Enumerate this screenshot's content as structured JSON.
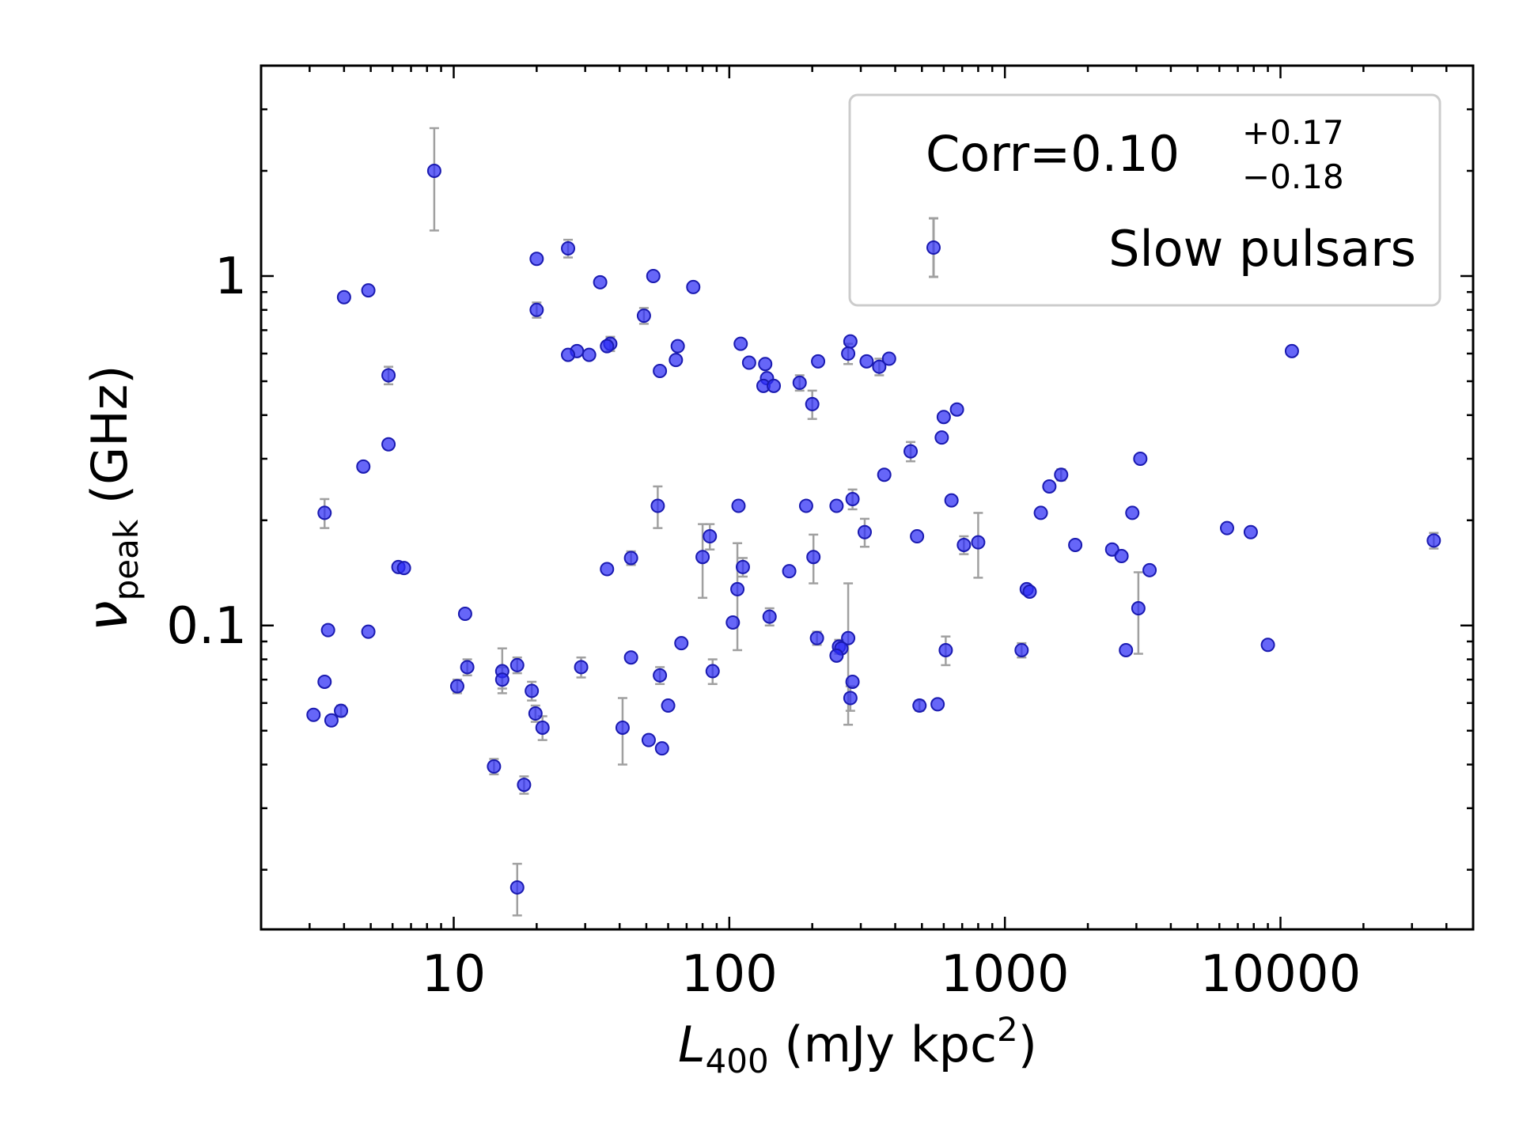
{
  "chart_data": {
    "type": "scatter",
    "xscale": "log",
    "yscale": "log",
    "xlim": [
      2.0,
      50000
    ],
    "ylim": [
      0.0135,
      4.0
    ],
    "xlabel": {
      "symbol": "L",
      "subscript": "400",
      "unit": " (mJy kpc",
      "unit_sup": "2",
      "unit_end": ")"
    },
    "ylabel": {
      "symbol": "ν",
      "subscript": "peak",
      "unit": " (GHz)"
    },
    "x_ticks": [
      {
        "value": 10,
        "label": "10"
      },
      {
        "value": 100,
        "label": "100"
      },
      {
        "value": 1000,
        "label": "1000"
      },
      {
        "value": 10000,
        "label": "10000"
      }
    ],
    "y_ticks": [
      {
        "value": 0.1,
        "label": "0.1"
      },
      {
        "value": 1,
        "label": "1"
      }
    ],
    "grid": false,
    "legend_position": "upper right",
    "annotation": {
      "prefix": "Corr=",
      "value": "0.10",
      "upper": "+0.17",
      "lower": "−0.18"
    },
    "colors": {
      "marker": "#2b2bf5",
      "marker_edge": "#1a1ab0",
      "errorbar": "#a0a0a0"
    },
    "series": [
      {
        "name": "Slow pulsars",
        "points": [
          {
            "x": 8.5,
            "y": 2.0,
            "ylo": 1.35,
            "yhi": 2.65
          },
          {
            "x": 26,
            "y": 1.2,
            "ylo": 1.13,
            "yhi": 1.27
          },
          {
            "x": 20,
            "y": 1.12
          },
          {
            "x": 53,
            "y": 1.0
          },
          {
            "x": 34,
            "y": 0.96
          },
          {
            "x": 74,
            "y": 0.93
          },
          {
            "x": 4.9,
            "y": 0.91
          },
          {
            "x": 4.0,
            "y": 0.87
          },
          {
            "x": 20,
            "y": 0.8,
            "ylo": 0.76,
            "yhi": 0.84
          },
          {
            "x": 49,
            "y": 0.77,
            "ylo": 0.73,
            "yhi": 0.81
          },
          {
            "x": 110,
            "y": 0.64
          },
          {
            "x": 37,
            "y": 0.64,
            "ylo": 0.61,
            "yhi": 0.67
          },
          {
            "x": 36,
            "y": 0.63
          },
          {
            "x": 65,
            "y": 0.63
          },
          {
            "x": 28,
            "y": 0.61
          },
          {
            "x": 26,
            "y": 0.595
          },
          {
            "x": 31,
            "y": 0.595
          },
          {
            "x": 64,
            "y": 0.575
          },
          {
            "x": 118,
            "y": 0.565
          },
          {
            "x": 135,
            "y": 0.56
          },
          {
            "x": 56,
            "y": 0.535
          },
          {
            "x": 210,
            "y": 0.57
          },
          {
            "x": 275,
            "y": 0.65
          },
          {
            "x": 270,
            "y": 0.6,
            "ylo": 0.56,
            "yhi": 0.64
          },
          {
            "x": 315,
            "y": 0.57
          },
          {
            "x": 350,
            "y": 0.55,
            "ylo": 0.52,
            "yhi": 0.58
          },
          {
            "x": 380,
            "y": 0.58
          },
          {
            "x": 11000,
            "y": 0.61
          },
          {
            "x": 5.8,
            "y": 0.52,
            "ylo": 0.49,
            "yhi": 0.55
          },
          {
            "x": 137,
            "y": 0.51
          },
          {
            "x": 133,
            "y": 0.485
          },
          {
            "x": 145,
            "y": 0.485
          },
          {
            "x": 180,
            "y": 0.495,
            "ylo": 0.47,
            "yhi": 0.52
          },
          {
            "x": 200,
            "y": 0.43,
            "ylo": 0.39,
            "yhi": 0.47
          },
          {
            "x": 670,
            "y": 0.415
          },
          {
            "x": 600,
            "y": 0.395
          },
          {
            "x": 5.8,
            "y": 0.33
          },
          {
            "x": 590,
            "y": 0.345
          },
          {
            "x": 455,
            "y": 0.315,
            "ylo": 0.295,
            "yhi": 0.335
          },
          {
            "x": 4.7,
            "y": 0.285
          },
          {
            "x": 3100,
            "y": 0.3
          },
          {
            "x": 365,
            "y": 0.27
          },
          {
            "x": 1600,
            "y": 0.27,
            "ylo": 0.26,
            "yhi": 0.28
          },
          {
            "x": 1450,
            "y": 0.25
          },
          {
            "x": 280,
            "y": 0.23,
            "ylo": 0.215,
            "yhi": 0.245
          },
          {
            "x": 640,
            "y": 0.228
          },
          {
            "x": 55,
            "y": 0.22,
            "ylo": 0.19,
            "yhi": 0.25
          },
          {
            "x": 108,
            "y": 0.22
          },
          {
            "x": 190,
            "y": 0.22
          },
          {
            "x": 245,
            "y": 0.22
          },
          {
            "x": 3.4,
            "y": 0.21,
            "ylo": 0.19,
            "yhi": 0.23
          },
          {
            "x": 1350,
            "y": 0.21
          },
          {
            "x": 2900,
            "y": 0.21
          },
          {
            "x": 6400,
            "y": 0.19
          },
          {
            "x": 7800,
            "y": 0.185
          },
          {
            "x": 310,
            "y": 0.185,
            "ylo": 0.168,
            "yhi": 0.202
          },
          {
            "x": 480,
            "y": 0.18
          },
          {
            "x": 85,
            "y": 0.18,
            "ylo": 0.165,
            "yhi": 0.195
          },
          {
            "x": 36000,
            "y": 0.175,
            "ylo": 0.166,
            "yhi": 0.184
          },
          {
            "x": 800,
            "y": 0.173,
            "ylo": 0.137,
            "yhi": 0.21
          },
          {
            "x": 710,
            "y": 0.17,
            "ylo": 0.16,
            "yhi": 0.18
          },
          {
            "x": 1800,
            "y": 0.17
          },
          {
            "x": 2450,
            "y": 0.165
          },
          {
            "x": 2650,
            "y": 0.158
          },
          {
            "x": 44,
            "y": 0.156,
            "ylo": 0.149,
            "yhi": 0.163
          },
          {
            "x": 80,
            "y": 0.157,
            "ylo": 0.12,
            "yhi": 0.195
          },
          {
            "x": 202,
            "y": 0.157,
            "ylo": 0.132,
            "yhi": 0.182
          },
          {
            "x": 6.3,
            "y": 0.147
          },
          {
            "x": 6.6,
            "y": 0.146
          },
          {
            "x": 36,
            "y": 0.145
          },
          {
            "x": 112,
            "y": 0.147,
            "ylo": 0.138,
            "yhi": 0.156
          },
          {
            "x": 165,
            "y": 0.143
          },
          {
            "x": 3350,
            "y": 0.144
          },
          {
            "x": 107,
            "y": 0.127,
            "ylo": 0.085,
            "yhi": 0.172
          },
          {
            "x": 1200,
            "y": 0.127
          },
          {
            "x": 1230,
            "y": 0.125
          },
          {
            "x": 3050,
            "y": 0.112,
            "ylo": 0.083,
            "yhi": 0.142
          },
          {
            "x": 11,
            "y": 0.108
          },
          {
            "x": 140,
            "y": 0.106,
            "ylo": 0.1,
            "yhi": 0.112
          },
          {
            "x": 103,
            "y": 0.102
          },
          {
            "x": 3.5,
            "y": 0.097
          },
          {
            "x": 4.9,
            "y": 0.096
          },
          {
            "x": 208,
            "y": 0.092,
            "ylo": 0.088,
            "yhi": 0.096
          },
          {
            "x": 270,
            "y": 0.092,
            "ylo": 0.052,
            "yhi": 0.132
          },
          {
            "x": 9000,
            "y": 0.088
          },
          {
            "x": 67,
            "y": 0.089
          },
          {
            "x": 250,
            "y": 0.087,
            "ylo": 0.083,
            "yhi": 0.091
          },
          {
            "x": 255,
            "y": 0.086
          },
          {
            "x": 1150,
            "y": 0.085,
            "ylo": 0.081,
            "yhi": 0.089
          },
          {
            "x": 2750,
            "y": 0.085
          },
          {
            "x": 610,
            "y": 0.085,
            "ylo": 0.077,
            "yhi": 0.093
          },
          {
            "x": 245,
            "y": 0.082
          },
          {
            "x": 44,
            "y": 0.081
          },
          {
            "x": 17,
            "y": 0.077,
            "ylo": 0.073,
            "yhi": 0.081
          },
          {
            "x": 11.2,
            "y": 0.076,
            "ylo": 0.072,
            "yhi": 0.08
          },
          {
            "x": 29,
            "y": 0.076,
            "ylo": 0.071,
            "yhi": 0.081
          },
          {
            "x": 15,
            "y": 0.074,
            "ylo": 0.066,
            "yhi": 0.086
          },
          {
            "x": 87,
            "y": 0.074,
            "ylo": 0.068,
            "yhi": 0.08
          },
          {
            "x": 56,
            "y": 0.072,
            "ylo": 0.068,
            "yhi": 0.076
          },
          {
            "x": 15,
            "y": 0.07,
            "ylo": 0.064,
            "yhi": 0.076
          },
          {
            "x": 3.4,
            "y": 0.069
          },
          {
            "x": 280,
            "y": 0.069
          },
          {
            "x": 10.3,
            "y": 0.067,
            "ylo": 0.064,
            "yhi": 0.07
          },
          {
            "x": 19.2,
            "y": 0.065,
            "ylo": 0.061,
            "yhi": 0.069
          },
          {
            "x": 275,
            "y": 0.062,
            "ylo": 0.057,
            "yhi": 0.067
          },
          {
            "x": 60,
            "y": 0.059
          },
          {
            "x": 490,
            "y": 0.059,
            "ylo": 0.057,
            "yhi": 0.061
          },
          {
            "x": 570,
            "y": 0.0595
          },
          {
            "x": 3.9,
            "y": 0.057,
            "ylo": 0.055,
            "yhi": 0.059
          },
          {
            "x": 3.1,
            "y": 0.0555
          },
          {
            "x": 19.8,
            "y": 0.056,
            "ylo": 0.053,
            "yhi": 0.059
          },
          {
            "x": 3.6,
            "y": 0.0535
          },
          {
            "x": 21,
            "y": 0.051,
            "ylo": 0.047,
            "yhi": 0.055
          },
          {
            "x": 41,
            "y": 0.051,
            "ylo": 0.04,
            "yhi": 0.062
          },
          {
            "x": 51,
            "y": 0.047
          },
          {
            "x": 57,
            "y": 0.0445
          },
          {
            "x": 14,
            "y": 0.0395,
            "ylo": 0.0375,
            "yhi": 0.0415
          },
          {
            "x": 18,
            "y": 0.035,
            "ylo": 0.033,
            "yhi": 0.037
          },
          {
            "x": 17,
            "y": 0.0178,
            "ylo": 0.0148,
            "yhi": 0.0208
          }
        ]
      }
    ]
  }
}
